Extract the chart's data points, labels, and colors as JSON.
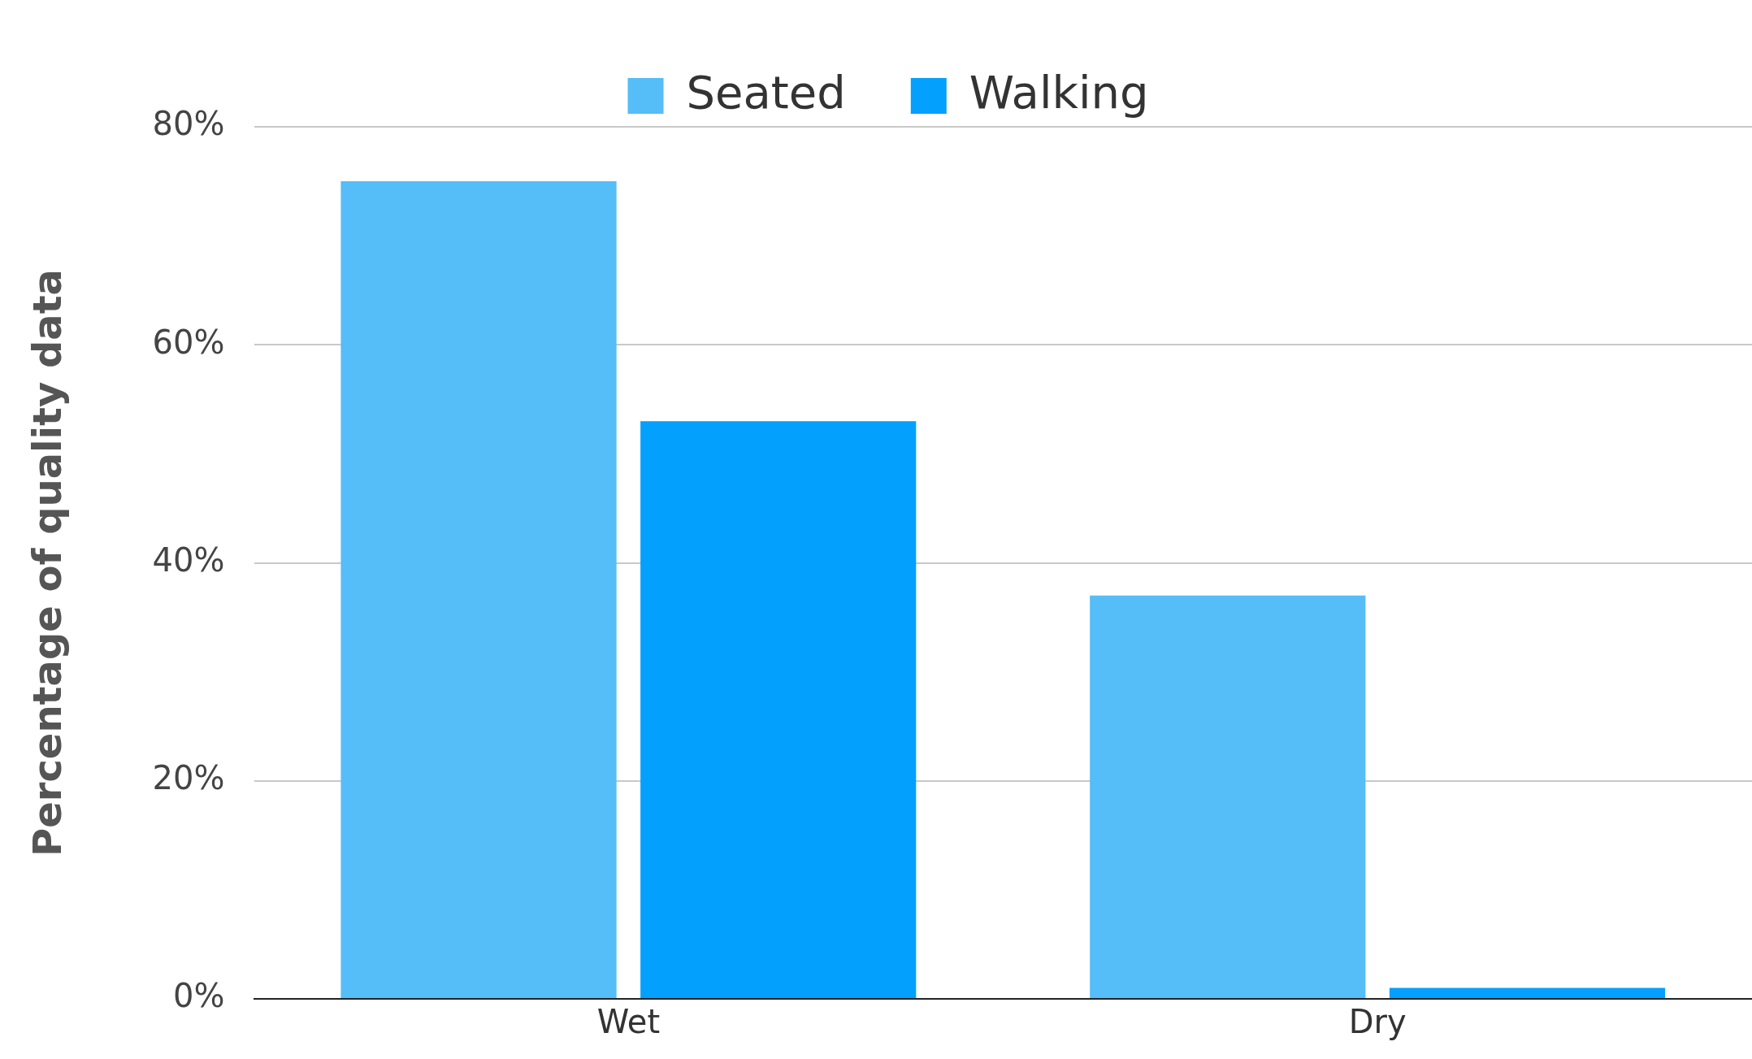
{
  "chart_data": {
    "type": "bar",
    "ylabel": "Percentage of quality data",
    "categories": [
      "Wet",
      "Dry"
    ],
    "series": [
      {
        "name": "Seated",
        "color": "#55bdf7",
        "values": [
          75,
          37
        ]
      },
      {
        "name": "Walking",
        "color": "#04a0fd",
        "values": [
          53,
          1
        ]
      }
    ],
    "ylim": [
      0,
      80
    ],
    "yticks": [
      {
        "value": 0,
        "label": "0%"
      },
      {
        "value": 20,
        "label": "20%"
      },
      {
        "value": 40,
        "label": "40%"
      },
      {
        "value": 60,
        "label": "60%"
      },
      {
        "value": 80,
        "label": "80%"
      }
    ],
    "grid": "y",
    "legend": "top"
  }
}
